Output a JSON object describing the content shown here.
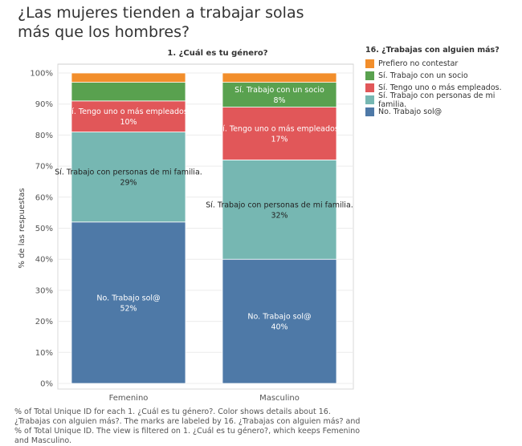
{
  "title": "¿Las mujeres tienden a trabajar solas más que los hombres?",
  "footnote": "% of Total Unique ID for each 1. ¿Cuál es tu género?.  Color shows details about 16.  ¿Trabajas con alguien más?.  The marks are labeled by 16.  ¿Trabajas con alguien más? and % of Total Unique ID.  The view is filtered on 1. ¿Cuál es tu género?, which keeps Femenino and Masculino.",
  "legend": {
    "title": "16.  ¿Trabajas con alguien más?",
    "items": [
      {
        "label": "Prefiero no contestar",
        "color": "#F28E2B"
      },
      {
        "label": "Sí. Trabajo con un socio",
        "color": "#59A14F"
      },
      {
        "label": "Sí. Tengo uno o más empleados.",
        "color": "#E15759"
      },
      {
        "label": "Sí. Trabajo con personas de mi familia.",
        "color": "#76B7B2"
      },
      {
        "label": "No. Trabajo sol@",
        "color": "#4E79A7"
      }
    ]
  },
  "chart_data": {
    "type": "bar",
    "stacked": true,
    "title": "1. ¿Cuál es tu género?",
    "xlabel": "",
    "ylabel": "% de las respuestas",
    "ylim": [
      0,
      100
    ],
    "yticks": [
      "0%",
      "10%",
      "20%",
      "30%",
      "40%",
      "50%",
      "60%",
      "70%",
      "80%",
      "90%",
      "100%"
    ],
    "grid": true,
    "legend_position": "right",
    "categories": [
      "Femenino",
      "Masculino"
    ],
    "series": [
      {
        "name": "No. Trabajo sol@",
        "color": "#4E79A7",
        "values": [
          52,
          40
        ],
        "labels": [
          "52%",
          "40%"
        ]
      },
      {
        "name": "Sí. Trabajo con personas de mi familia.",
        "color": "#76B7B2",
        "values": [
          29,
          32
        ],
        "labels": [
          "29%",
          "32%"
        ]
      },
      {
        "name": "Sí. Tengo uno o más empleados.",
        "color": "#E15759",
        "values": [
          10,
          17
        ],
        "labels": [
          "10%",
          "17%"
        ]
      },
      {
        "name": "Sí. Trabajo con un socio",
        "color": "#59A14F",
        "values": [
          6,
          8
        ],
        "labels": [
          "",
          "8%"
        ]
      },
      {
        "name": "Prefiero no contestar",
        "color": "#F28E2B",
        "values": [
          3,
          3
        ],
        "labels": [
          "",
          ""
        ]
      }
    ]
  }
}
